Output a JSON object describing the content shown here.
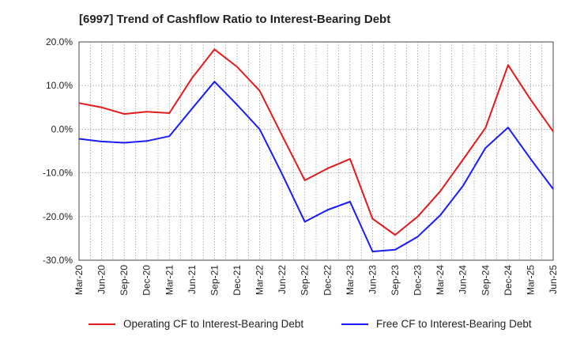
{
  "title": "[6997]  Trend of Cashflow Ratio to Interest-Bearing Debt",
  "chart_data": {
    "type": "line",
    "title": "[6997]  Trend of Cashflow Ratio to Interest-Bearing Debt",
    "xlabel": "",
    "ylabel": "",
    "categories": [
      "Mar-20",
      "Jun-20",
      "Sep-20",
      "Dec-20",
      "Mar-21",
      "Jun-21",
      "Sep-21",
      "Dec-21",
      "Mar-22",
      "Jun-22",
      "Sep-22",
      "Dec-22",
      "Mar-23",
      "Jun-23",
      "Sep-23",
      "Dec-23",
      "Mar-24",
      "Jun-24",
      "Sep-24",
      "Dec-24",
      "Mar-25",
      "Jun-25"
    ],
    "x_tick_labels": [
      "Mar-20",
      "Jun-20",
      "Sep-20",
      "Dec-20",
      "Mar-21",
      "Jun-21",
      "Sep-21",
      "Dec-21",
      "Mar-22",
      "Jun-22",
      "Sep-22",
      "Dec-22",
      "Mar-23",
      "Jun-23",
      "Sep-23",
      "Dec-23",
      "Mar-24",
      "Jun-24",
      "Sep-24",
      "Dec-24",
      "Mar-25",
      "Jun-25"
    ],
    "y_tick_labels": [
      "20.0%",
      "10.0%",
      "0.0%",
      "-10.0%",
      "-20.0%",
      "-30.0%"
    ],
    "y_ticks": [
      20,
      10,
      0,
      -10,
      -20,
      -30
    ],
    "ylim": [
      -30,
      20
    ],
    "grid": true,
    "legend_position": "bottom",
    "series": [
      {
        "name": "Operating CF to Interest-Bearing Debt",
        "color": "#e31a1c",
        "values": [
          6.0,
          5.0,
          3.5,
          4.0,
          3.7,
          11.7,
          18.3,
          14.3,
          8.8,
          -1.5,
          -11.7,
          -9.0,
          -6.8,
          -20.5,
          -24.2,
          -20.0,
          -14.2,
          -7.0,
          0.3,
          14.7,
          6.8,
          -0.5
        ]
      },
      {
        "name": "Free CF to Interest-Bearing Debt",
        "color": "#1a1aff",
        "values": [
          -2.2,
          -2.8,
          -3.1,
          -2.7,
          -1.6,
          4.7,
          10.9,
          5.6,
          0.0,
          -10.3,
          -21.2,
          -18.5,
          -16.6,
          -28.0,
          -27.6,
          -24.6,
          -19.7,
          -13.0,
          -4.3,
          0.4,
          -6.8,
          -13.7
        ]
      }
    ]
  }
}
